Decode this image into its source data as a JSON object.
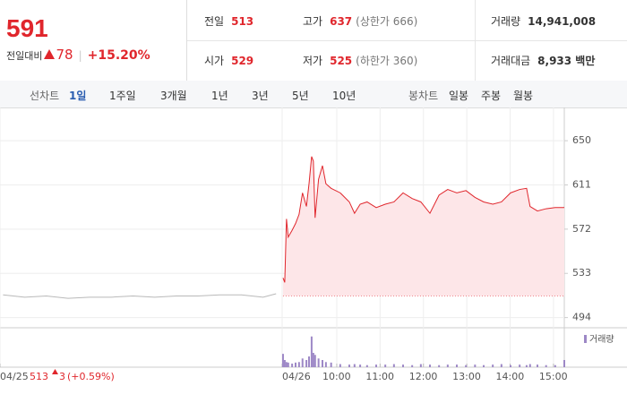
{
  "header": {
    "price": 591,
    "change_label": "전일대비",
    "change": 78,
    "change_pct": "+15.20%",
    "rows": [
      [
        {
          "label": "전일",
          "value": 513
        },
        {
          "label": "고가",
          "value": 637,
          "note": "(상한가 666)"
        },
        {
          "label": "거래량",
          "value": "14,941,008"
        }
      ],
      [
        {
          "label": "시가",
          "value": 529
        },
        {
          "label": "저가",
          "value": 525,
          "note": "(하한가 360)"
        },
        {
          "label": "거래대금",
          "value": "8,933 백만"
        }
      ]
    ]
  },
  "toolbar": {
    "line_label": "선차트",
    "line_periods": [
      "1일",
      "1주일",
      "3개월",
      "1년",
      "3년",
      "5년",
      "10년"
    ],
    "selected": "1일",
    "candle_label": "봉차트",
    "candle_periods": [
      "일봉",
      "주봉",
      "월봉"
    ]
  },
  "prev_day": {
    "close": 513,
    "change": 3,
    "change_pct": "(+0.59%)"
  },
  "chart_data": {
    "type": "line",
    "xlim": [
      2.23,
      15.25
    ],
    "xticks": [
      {
        "value": 2.23,
        "label": "04/25"
      },
      {
        "value": 8.74,
        "label": "04/26"
      },
      {
        "value": 10,
        "label": "10:00"
      },
      {
        "value": 11,
        "label": "11:00"
      },
      {
        "value": 12,
        "label": "12:00"
      },
      {
        "value": 13,
        "label": "13:00"
      },
      {
        "value": 14,
        "label": "14:00"
      },
      {
        "value": 15,
        "label": "15:00"
      }
    ],
    "ylim": [
      485,
      673
    ],
    "yticks": [
      494,
      533,
      572,
      611,
      650
    ],
    "grid": true,
    "series": [
      {
        "color": "#b9b9b9",
        "x": [
          2.3,
          2.8,
          3.3,
          3.8,
          4.3,
          4.8,
          5.3,
          5.8,
          6.3,
          6.8,
          7.3,
          7.8,
          8.3,
          8.6
        ],
        "values": [
          514,
          512,
          513,
          511,
          512,
          512,
          513,
          512,
          513,
          513,
          514,
          514,
          512,
          515
        ]
      },
      {
        "color": "#e0262c",
        "fill": "#fde6e8",
        "x": [
          8.76,
          8.8,
          8.84,
          8.88,
          8.97,
          9.05,
          9.13,
          9.21,
          9.3,
          9.36,
          9.42,
          9.46,
          9.5,
          9.58,
          9.67,
          9.75,
          9.87,
          10.08,
          10.29,
          10.41,
          10.54,
          10.7,
          10.91,
          11.12,
          11.32,
          11.53,
          11.74,
          11.94,
          12.15,
          12.36,
          12.56,
          12.77,
          12.98,
          13.19,
          13.39,
          13.6,
          13.8,
          14.01,
          14.22,
          14.38,
          14.46,
          14.63,
          14.83,
          15.04,
          15.25
        ],
        "values": [
          529,
          525,
          581,
          565,
          571,
          577,
          585,
          604,
          592,
          612,
          636,
          632,
          582,
          616,
          628,
          612,
          608,
          604,
          596,
          586,
          594,
          596,
          591,
          594,
          596,
          604,
          599,
          596,
          586,
          602,
          607,
          604,
          606,
          600,
          596,
          594,
          596,
          604,
          607,
          608,
          592,
          588,
          590,
          591,
          591
        ]
      }
    ],
    "volume": {
      "name": "거래량",
      "color": "#9d88c6",
      "ylim": [
        0,
        700
      ],
      "values": [
        260,
        140,
        100,
        90,
        70,
        90,
        100,
        170,
        140,
        210,
        600,
        280,
        240,
        170,
        140,
        100,
        90,
        60,
        50,
        60,
        50,
        40,
        50,
        50,
        60,
        50,
        40,
        60,
        50,
        40,
        50,
        50,
        40,
        50,
        40,
        50,
        60,
        40,
        50,
        40,
        60,
        50,
        40,
        40,
        140
      ]
    }
  }
}
